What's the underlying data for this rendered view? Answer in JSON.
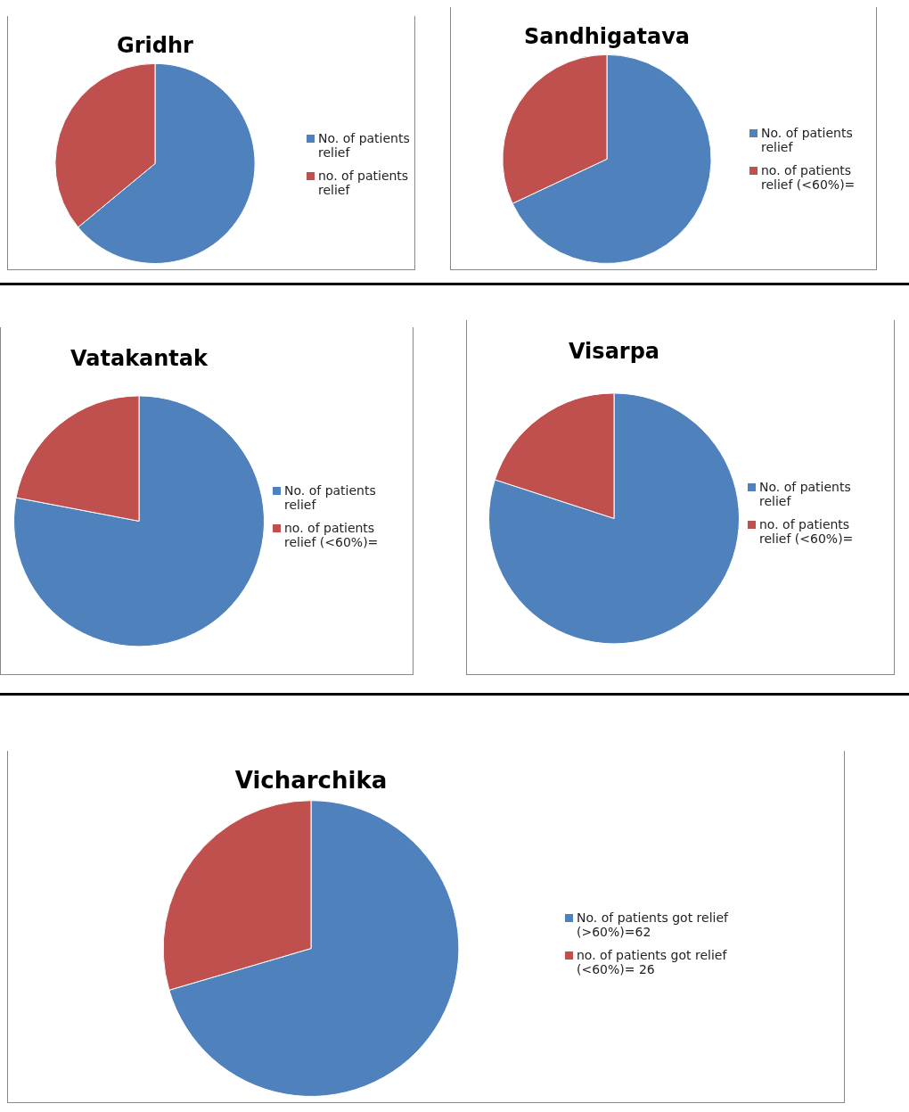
{
  "chart_data": [
    {
      "type": "pie",
      "title": "Gridhr",
      "categories": [
        "No. of patients relief",
        "no. of patients relief"
      ],
      "values": [
        64,
        36
      ],
      "colors": [
        "#4f81bd",
        "#c0504d"
      ],
      "legend": "right"
    },
    {
      "type": "pie",
      "title": "Sandhigatava",
      "categories": [
        "No. of patients relief",
        "no. of patients relief (<60%)="
      ],
      "values": [
        68,
        32
      ],
      "colors": [
        "#4f81bd",
        "#c0504d"
      ],
      "legend": "right"
    },
    {
      "type": "pie",
      "title": "Vatakantak",
      "categories": [
        "No. of patients relief",
        "no. of patients relief (<60%)="
      ],
      "values": [
        78,
        22
      ],
      "colors": [
        "#4f81bd",
        "#c0504d"
      ],
      "legend": "right"
    },
    {
      "type": "pie",
      "title": "Visarpa",
      "categories": [
        "No. of patients relief",
        "no. of patients relief (<60%)="
      ],
      "values": [
        80,
        20
      ],
      "colors": [
        "#4f81bd",
        "#c0504d"
      ],
      "legend": "right"
    },
    {
      "type": "pie",
      "title": "Vicharchika",
      "categories": [
        "No. of patients got relief (>60%)=62",
        "no. of patients got relief (<60%)= 26"
      ],
      "values": [
        62,
        26
      ],
      "colors": [
        "#4f81bd",
        "#c0504d"
      ],
      "legend": "right"
    }
  ]
}
